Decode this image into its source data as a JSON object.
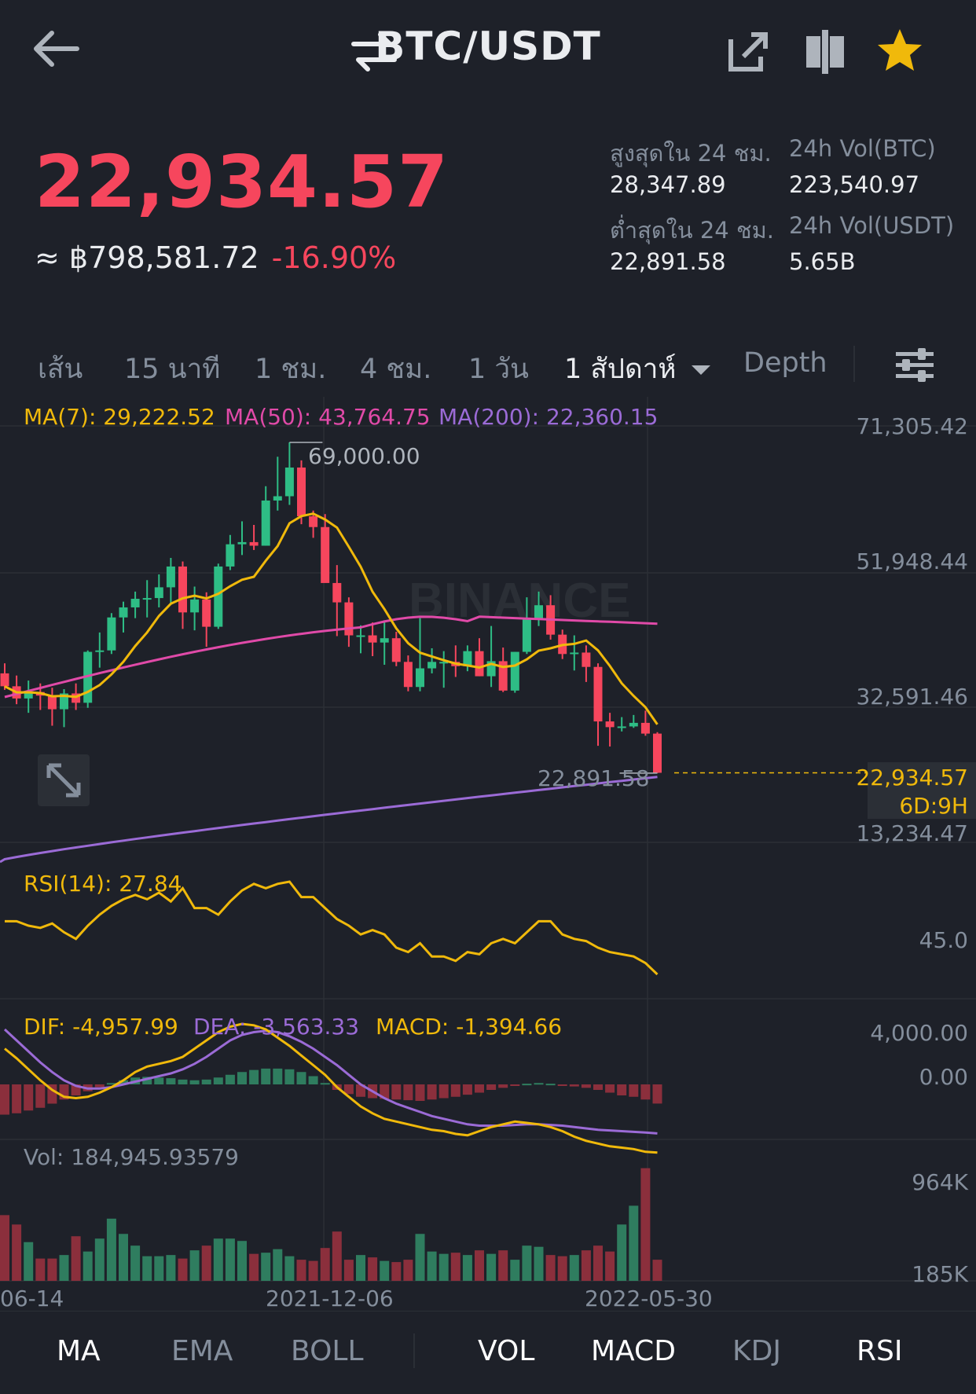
{
  "header": {
    "title": "BTC/USDT",
    "icons": [
      "back-arrow-icon",
      "swap-icon",
      "share-icon",
      "compare-icon",
      "star-icon"
    ]
  },
  "price": {
    "last": "22,934.57",
    "fiat": "≈ ฿798,581.72",
    "change": "-16.90%",
    "color_down": "#f6465d",
    "color_up": "#2ebd85"
  },
  "stats": {
    "high_label": "สูงสุดใน 24 ชม.",
    "high_value": "28,347.89",
    "vol_btc_label": "24h Vol(BTC)",
    "vol_btc_value": "223,540.97",
    "low_label": "ต่ำสุดใน 24 ชม.",
    "low_value": "22,891.58",
    "vol_usdt_label": "24h Vol(USDT)",
    "vol_usdt_value": "5.65B"
  },
  "tabs": {
    "line": "เส้น",
    "m15": "15 นาที",
    "h1": "1 ชม.",
    "h4": "4 ชม.",
    "d1": "1 วัน",
    "w1": "1 สัปดาห์",
    "depth": "Depth",
    "active": "1 สัปดาห์"
  },
  "ma_legend": {
    "ma7": "MA(7): 29,222.52",
    "ma50": "MA(50): 43,764.75",
    "ma200": "MA(200): 22,360.15",
    "ma7_color": "#f0b90b",
    "ma50_color": "#e04aa8",
    "ma200_color": "#9b6bd6"
  },
  "price_axis": {
    "t1": "71,305.42",
    "t2": "51,948.44",
    "t3": "32,591.46",
    "t4": "13,234.47",
    "current": "22,934.57",
    "countdown": "6D:9H",
    "high_marker": "69,000.00",
    "low_marker": "22,891.58"
  },
  "watermark": "BINANCE",
  "rsi": {
    "label": "RSI(14): 27.84",
    "axis": "45.0"
  },
  "macd": {
    "dif": "DIF: -4,957.99",
    "dea": "DEA: -3,563.33",
    "macd": "MACD: -1,394.66",
    "axis_top": "4,000.00",
    "axis_zero": "0.00"
  },
  "vol": {
    "label": "Vol: 184,945.93579",
    "axis_top": "964K",
    "axis_bottom": "185K"
  },
  "dates": {
    "d1": "06-14",
    "d2": "2021-12-06",
    "d3": "2022-05-30"
  },
  "bottom_bar": {
    "ma": "MA",
    "ema": "EMA",
    "boll": "BOLL",
    "vol": "VOL",
    "macd": "MACD",
    "kdj": "KDJ",
    "rsi": "RSI"
  },
  "chart_data": {
    "type": "candlestick",
    "interval": "1 สัปดาห์",
    "y_range": [
      13234.47,
      71305.42
    ],
    "candles_ohlc": [
      [
        36800,
        38200,
        34500,
        35000
      ],
      [
        35000,
        36500,
        32500,
        33300
      ],
      [
        33300,
        35800,
        31300,
        34200
      ],
      [
        34200,
        35400,
        31700,
        33700
      ],
      [
        33700,
        34800,
        29500,
        31800
      ],
      [
        31800,
        34600,
        29300,
        34000
      ],
      [
        34000,
        35400,
        31700,
        32700
      ],
      [
        32700,
        40000,
        32000,
        39800
      ],
      [
        39800,
        42500,
        37600,
        40000
      ],
      [
        40000,
        45200,
        39500,
        44600
      ],
      [
        44600,
        46800,
        42500,
        46000
      ],
      [
        46000,
        48200,
        44500,
        47200
      ],
      [
        47200,
        49800,
        44600,
        47300
      ],
      [
        47300,
        50600,
        46000,
        48800
      ],
      [
        48800,
        52900,
        46500,
        51700
      ],
      [
        51700,
        52400,
        43000,
        45300
      ],
      [
        45300,
        48900,
        42800,
        47100
      ],
      [
        47100,
        48100,
        40500,
        43300
      ],
      [
        43300,
        52100,
        43000,
        51700
      ],
      [
        51700,
        56100,
        51200,
        54800
      ],
      [
        54800,
        58000,
        53300,
        55100
      ],
      [
        55100,
        57500,
        54000,
        54600
      ],
      [
        54600,
        62900,
        54600,
        60900
      ],
      [
        60900,
        67000,
        59500,
        61500
      ],
      [
        61500,
        69000,
        60300,
        65500
      ],
      [
        65500,
        66500,
        57600,
        58700
      ],
      [
        58700,
        59500,
        55700,
        57200
      ],
      [
        57200,
        59000,
        50100,
        49400
      ],
      [
        49400,
        51900,
        42000,
        46700
      ],
      [
        46700,
        47400,
        40500,
        42100
      ],
      [
        42100,
        43500,
        39600,
        42100
      ],
      [
        42100,
        43900,
        39200,
        41100
      ],
      [
        41100,
        44200,
        38000,
        41700
      ],
      [
        41700,
        42600,
        37800,
        38400
      ],
      [
        38400,
        39300,
        34300,
        34900
      ],
      [
        34900,
        44500,
        34300,
        37500
      ],
      [
        37500,
        40300,
        36800,
        38400
      ],
      [
        38400,
        39900,
        34800,
        38400
      ],
      [
        38400,
        40700,
        36300,
        37800
      ],
      [
        37800,
        40700,
        37100,
        39900
      ],
      [
        39900,
        41700,
        36400,
        36400
      ],
      [
        36400,
        43400,
        34900,
        38500
      ],
      [
        38500,
        40400,
        34200,
        34400
      ],
      [
        34400,
        39800,
        34100,
        39800
      ],
      [
        39800,
        47400,
        39500,
        44500
      ],
      [
        44500,
        48200,
        43400,
        46300
      ],
      [
        46300,
        47700,
        41500,
        42200
      ],
      [
        42200,
        42900,
        38800,
        39500
      ],
      [
        39500,
        42100,
        37200,
        39700
      ],
      [
        39700,
        40700,
        35600,
        37700
      ],
      [
        37700,
        38200,
        26700,
        30100
      ],
      [
        30100,
        31300,
        26600,
        29300
      ],
      [
        29300,
        30700,
        28700,
        29400
      ],
      [
        29400,
        31000,
        29200,
        29900
      ],
      [
        29900,
        31600,
        28100,
        28400
      ],
      [
        28400,
        28600,
        22900,
        22934.57
      ]
    ],
    "ma7_last": 29222.52,
    "ma50_last": 43764.75,
    "ma200_last": 22360.15,
    "rsi_last": 27.84,
    "dif_last": -4957.99,
    "dea_last": -3563.33,
    "macd_last": -1394.66,
    "vol_last": 184945.93579,
    "volumes_k": [
      560,
      480,
      330,
      190,
      190,
      220,
      380,
      250,
      360,
      530,
      400,
      300,
      210,
      210,
      220,
      190,
      260,
      300,
      360,
      360,
      340,
      230,
      240,
      270,
      210,
      180,
      170,
      280,
      420,
      180,
      220,
      200,
      170,
      160,
      180,
      400,
      250,
      230,
      240,
      220,
      260,
      230,
      260,
      180,
      300,
      290,
      220,
      210,
      220,
      260,
      300,
      250,
      480,
      640,
      960,
      180
    ],
    "x_labels": [
      "06-14",
      "2021-12-06",
      "2022-05-30"
    ]
  }
}
